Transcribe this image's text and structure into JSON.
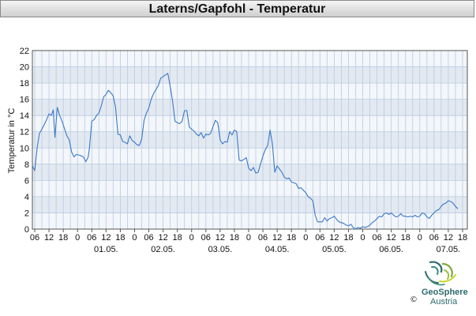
{
  "header": {
    "title": "Laterns/Gapfohl - Temperatur"
  },
  "branding": {
    "name": "GeoSphere",
    "subname": "Austria",
    "copyright": "©"
  },
  "colors": {
    "line": "#3b78c8",
    "band_light": "#f3f6fa",
    "band_dark": "#e3e9f1",
    "grid": "#b9cbe0"
  },
  "chart_data": {
    "type": "line",
    "title": "",
    "ylabel": "Temperatur in °C",
    "xlabel": "",
    "ylim": [
      0,
      22
    ],
    "yticks": [
      0,
      2,
      4,
      6,
      8,
      10,
      12,
      14,
      16,
      18,
      20,
      22
    ],
    "x_unit": "hours since 30.04. 00:00",
    "xlim": [
      5,
      188
    ],
    "hour_ticks": [
      {
        "t": 6,
        "label": "06"
      },
      {
        "t": 12,
        "label": "12"
      },
      {
        "t": 18,
        "label": "18"
      },
      {
        "t": 24,
        "label": "0"
      },
      {
        "t": 30,
        "label": "06"
      },
      {
        "t": 36,
        "label": "12"
      },
      {
        "t": 42,
        "label": "18"
      },
      {
        "t": 48,
        "label": "0"
      },
      {
        "t": 54,
        "label": "06"
      },
      {
        "t": 60,
        "label": "12"
      },
      {
        "t": 66,
        "label": "18"
      },
      {
        "t": 72,
        "label": "0"
      },
      {
        "t": 78,
        "label": "06"
      },
      {
        "t": 84,
        "label": "12"
      },
      {
        "t": 90,
        "label": "18"
      },
      {
        "t": 96,
        "label": "0"
      },
      {
        "t": 102,
        "label": "06"
      },
      {
        "t": 108,
        "label": "12"
      },
      {
        "t": 114,
        "label": "18"
      },
      {
        "t": 120,
        "label": "0"
      },
      {
        "t": 126,
        "label": "06"
      },
      {
        "t": 132,
        "label": "12"
      },
      {
        "t": 138,
        "label": "18"
      },
      {
        "t": 144,
        "label": "0"
      },
      {
        "t": 150,
        "label": "06"
      },
      {
        "t": 156,
        "label": "12"
      },
      {
        "t": 162,
        "label": "18"
      },
      {
        "t": 168,
        "label": "0"
      },
      {
        "t": 174,
        "label": "06"
      },
      {
        "t": 180,
        "label": "12"
      },
      {
        "t": 186,
        "label": "18"
      }
    ],
    "date_labels": [
      {
        "t": 36,
        "label": "01.05."
      },
      {
        "t": 60,
        "label": "02.05."
      },
      {
        "t": 84,
        "label": "03.05."
      },
      {
        "t": 108,
        "label": "04.05."
      },
      {
        "t": 132,
        "label": "05.05."
      },
      {
        "t": 156,
        "label": "06.05."
      },
      {
        "t": 180,
        "label": "07.05."
      }
    ],
    "series": [
      {
        "values": [
          [
            5.0,
            7.8
          ],
          [
            6.0,
            7.2
          ],
          [
            7.0,
            10.0
          ],
          [
            8.0,
            11.8
          ],
          [
            9.0,
            12.3
          ],
          [
            10.0,
            12.9
          ],
          [
            11.0,
            13.5
          ],
          [
            12.0,
            14.2
          ],
          [
            13.0,
            14.0
          ],
          [
            13.8,
            14.7
          ],
          [
            14.5,
            11.3
          ],
          [
            15.5,
            15.0
          ],
          [
            16.5,
            14.0
          ],
          [
            17.5,
            13.3
          ],
          [
            18.5,
            12.4
          ],
          [
            19.5,
            11.5
          ],
          [
            20.5,
            11.0
          ],
          [
            21.5,
            9.5
          ],
          [
            22.5,
            8.9
          ],
          [
            23.5,
            9.2
          ],
          [
            25.0,
            9.1
          ],
          [
            26.5,
            8.9
          ],
          [
            27.5,
            8.3
          ],
          [
            28.5,
            8.9
          ],
          [
            29.0,
            10.0
          ],
          [
            30.0,
            13.3
          ],
          [
            31.0,
            13.5
          ],
          [
            32.0,
            14.0
          ],
          [
            33.0,
            14.3
          ],
          [
            34.0,
            15.2
          ],
          [
            35.0,
            16.3
          ],
          [
            36.0,
            16.6
          ],
          [
            37.0,
            17.1
          ],
          [
            38.0,
            16.8
          ],
          [
            39.0,
            16.4
          ],
          [
            40.0,
            15.0
          ],
          [
            41.0,
            11.7
          ],
          [
            42.0,
            11.6
          ],
          [
            43.0,
            10.8
          ],
          [
            44.0,
            10.7
          ],
          [
            45.0,
            10.5
          ],
          [
            46.0,
            11.5
          ],
          [
            47.0,
            10.9
          ],
          [
            48.0,
            10.7
          ],
          [
            49.0,
            10.4
          ],
          [
            50.0,
            10.3
          ],
          [
            51.0,
            11.1
          ],
          [
            52.0,
            13.4
          ],
          [
            53.0,
            14.3
          ],
          [
            54.0,
            14.9
          ],
          [
            55.0,
            16.0
          ],
          [
            56.0,
            16.7
          ],
          [
            57.0,
            17.2
          ],
          [
            58.0,
            17.7
          ],
          [
            59.0,
            18.6
          ],
          [
            60.0,
            18.8
          ],
          [
            61.0,
            19.0
          ],
          [
            62.0,
            19.2
          ],
          [
            63.0,
            17.6
          ],
          [
            64.0,
            15.8
          ],
          [
            65.0,
            13.3
          ],
          [
            66.0,
            13.1
          ],
          [
            67.0,
            13.0
          ],
          [
            68.0,
            13.3
          ],
          [
            69.0,
            14.6
          ],
          [
            70.0,
            14.6
          ],
          [
            71.0,
            12.6
          ],
          [
            72.0,
            12.3
          ],
          [
            73.0,
            12.1
          ],
          [
            74.0,
            11.7
          ],
          [
            75.0,
            11.5
          ],
          [
            76.0,
            11.9
          ],
          [
            77.0,
            11.2
          ],
          [
            78.0,
            11.7
          ],
          [
            79.0,
            11.6
          ],
          [
            80.0,
            11.8
          ],
          [
            81.0,
            12.6
          ],
          [
            82.0,
            13.4
          ],
          [
            83.0,
            13.1
          ],
          [
            84.0,
            11.0
          ],
          [
            85.0,
            10.5
          ],
          [
            86.0,
            10.8
          ],
          [
            87.0,
            10.7
          ],
          [
            88.0,
            12.0
          ],
          [
            89.0,
            11.6
          ],
          [
            90.0,
            12.2
          ],
          [
            91.0,
            12.0
          ],
          [
            92.0,
            8.5
          ],
          [
            93.0,
            8.4
          ],
          [
            94.0,
            8.6
          ],
          [
            95.0,
            8.8
          ],
          [
            96.0,
            7.5
          ],
          [
            97.0,
            7.2
          ],
          [
            98.0,
            7.6
          ],
          [
            99.0,
            6.9
          ],
          [
            100.0,
            7.0
          ],
          [
            101.0,
            8.0
          ],
          [
            102.0,
            9.0
          ],
          [
            103.0,
            9.8
          ],
          [
            104.0,
            10.3
          ],
          [
            105.0,
            12.2
          ],
          [
            106.0,
            10.5
          ],
          [
            107.0,
            7.0
          ],
          [
            108.0,
            7.8
          ],
          [
            109.0,
            7.4
          ],
          [
            110.0,
            7.0
          ],
          [
            111.0,
            6.4
          ],
          [
            112.0,
            6.2
          ],
          [
            113.0,
            6.3
          ],
          [
            114.0,
            5.8
          ],
          [
            115.0,
            5.7
          ],
          [
            116.0,
            5.6
          ],
          [
            117.0,
            5.0
          ],
          [
            118.0,
            5.1
          ],
          [
            119.0,
            4.8
          ],
          [
            120.0,
            4.5
          ],
          [
            121.0,
            4.0
          ],
          [
            122.0,
            3.8
          ],
          [
            123.0,
            3.5
          ],
          [
            124.0,
            1.7
          ],
          [
            125.0,
            0.9
          ],
          [
            126.0,
            0.9
          ],
          [
            127.0,
            0.9
          ],
          [
            128.0,
            1.4
          ],
          [
            129.0,
            1.0
          ],
          [
            130.0,
            1.3
          ],
          [
            131.0,
            1.4
          ],
          [
            132.0,
            1.6
          ],
          [
            133.0,
            1.2
          ],
          [
            134.0,
            0.9
          ],
          [
            135.0,
            0.8
          ],
          [
            136.0,
            0.7
          ],
          [
            137.0,
            0.5
          ],
          [
            138.0,
            0.4
          ],
          [
            139.0,
            0.6
          ],
          [
            140.0,
            0.2
          ],
          [
            141.0,
            0.0
          ],
          [
            142.0,
            0.2
          ],
          [
            143.0,
            0.1
          ],
          [
            144.0,
            0.3
          ],
          [
            145.0,
            0.2
          ],
          [
            146.0,
            0.3
          ],
          [
            147.0,
            0.5
          ],
          [
            148.0,
            0.8
          ],
          [
            149.0,
            1.0
          ],
          [
            150.0,
            1.3
          ],
          [
            151.0,
            1.6
          ],
          [
            152.0,
            1.5
          ],
          [
            153.0,
            1.9
          ],
          [
            154.0,
            2.0
          ],
          [
            155.0,
            1.8
          ],
          [
            156.0,
            2.0
          ],
          [
            157.0,
            1.7
          ],
          [
            158.0,
            1.5
          ],
          [
            159.0,
            1.6
          ],
          [
            160.0,
            1.9
          ],
          [
            161.0,
            1.6
          ],
          [
            162.0,
            1.6
          ],
          [
            163.0,
            1.5
          ],
          [
            164.0,
            1.6
          ],
          [
            165.0,
            1.5
          ],
          [
            166.0,
            1.7
          ],
          [
            167.0,
            1.5
          ],
          [
            168.0,
            1.6
          ],
          [
            169.0,
            2.0
          ],
          [
            170.0,
            1.9
          ],
          [
            171.0,
            1.5
          ],
          [
            172.0,
            1.3
          ],
          [
            173.0,
            1.7
          ],
          [
            174.0,
            2.0
          ],
          [
            175.0,
            2.3
          ],
          [
            176.0,
            2.4
          ],
          [
            177.0,
            2.8
          ],
          [
            178.0,
            3.1
          ],
          [
            179.0,
            3.2
          ],
          [
            180.0,
            3.5
          ],
          [
            181.0,
            3.4
          ],
          [
            182.0,
            3.2
          ],
          [
            183.0,
            2.8
          ],
          [
            184.0,
            2.5
          ]
        ]
      }
    ],
    "grid": true,
    "legend": "none"
  }
}
